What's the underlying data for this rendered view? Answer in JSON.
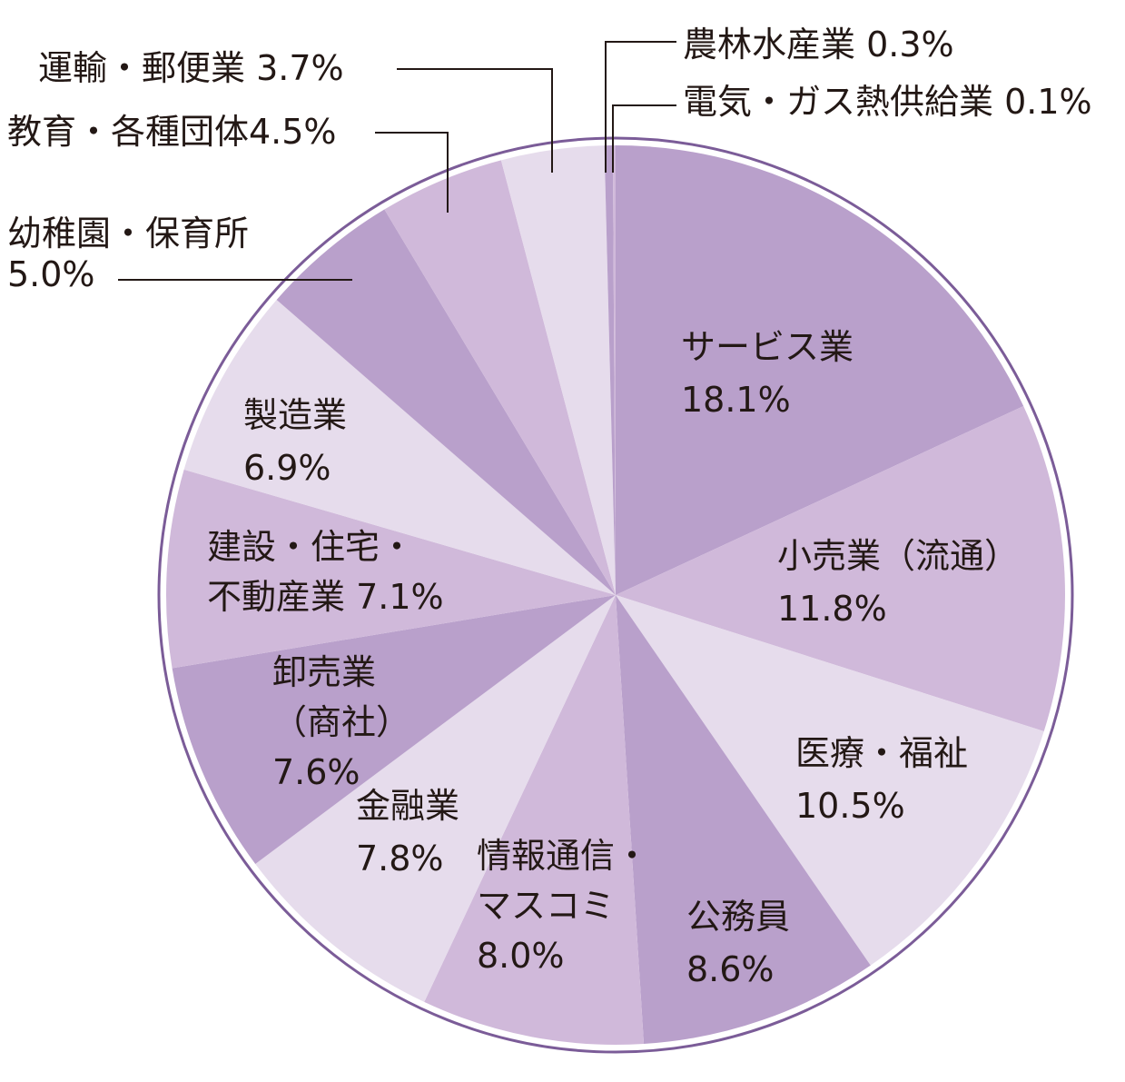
{
  "chart_data": {
    "type": "pie",
    "slices": [
      {
        "label": "サービス業",
        "value": 18.1,
        "text": [
          "サービス業",
          "18.1%"
        ],
        "color": "#b9a0cb"
      },
      {
        "label": "小売業（流通）",
        "value": 11.8,
        "text": [
          "小売業（流通）",
          "11.8%"
        ],
        "color": "#d0b9da"
      },
      {
        "label": "医療・福祉",
        "value": 10.5,
        "text": [
          "医療・福祉",
          "10.5%"
        ],
        "color": "#e6dcec"
      },
      {
        "label": "公務員",
        "value": 8.6,
        "text": [
          "公務員",
          "8.6%"
        ],
        "color": "#b9a0cb"
      },
      {
        "label": "情報通信・マスコミ",
        "value": 8.0,
        "text": [
          "情報通信・",
          "マスコミ",
          "8.0%"
        ],
        "color": "#d0b9da"
      },
      {
        "label": "金融業",
        "value": 7.8,
        "text": [
          "金融業",
          "7.8%"
        ],
        "color": "#e6dcec"
      },
      {
        "label": "卸売業（商社）",
        "value": 7.6,
        "text": [
          "卸売業",
          "（商社）",
          "7.6%"
        ],
        "color": "#b9a0cb"
      },
      {
        "label": "建設・住宅・不動産業",
        "value": 7.1,
        "text": [
          "建設・住宅・",
          "不動産業 7.1%"
        ],
        "color": "#d0b9da"
      },
      {
        "label": "製造業",
        "value": 6.9,
        "text": [
          "製造業",
          "6.9%"
        ],
        "color": "#e6dcec"
      },
      {
        "label": "幼稚園・保育所",
        "value": 5.0,
        "text": [
          "幼稚園・保育所",
          "5.0%"
        ],
        "color": "#b9a0cb"
      },
      {
        "label": "教育・各種団体",
        "value": 4.5,
        "text": [
          "教育・各種団体4.5%"
        ],
        "color": "#d0b9da"
      },
      {
        "label": "運輸・郵便業",
        "value": 3.7,
        "text": [
          "運輸・郵便業 3.7%"
        ],
        "color": "#e6dcec"
      },
      {
        "label": "農林水産業",
        "value": 0.3,
        "text": [
          "農林水産業 0.3%"
        ],
        "color": "#b9a0cb"
      },
      {
        "label": "電気・ガス熱供給業",
        "value": 0.1,
        "text": [
          "電気・ガス熱供給業 0.1%"
        ],
        "color": "#d0b9da"
      }
    ],
    "start_angle": "12 o'clock",
    "direction": "clockwise",
    "outline_color": "#7b5c98",
    "leader_line_color": "#231815"
  }
}
